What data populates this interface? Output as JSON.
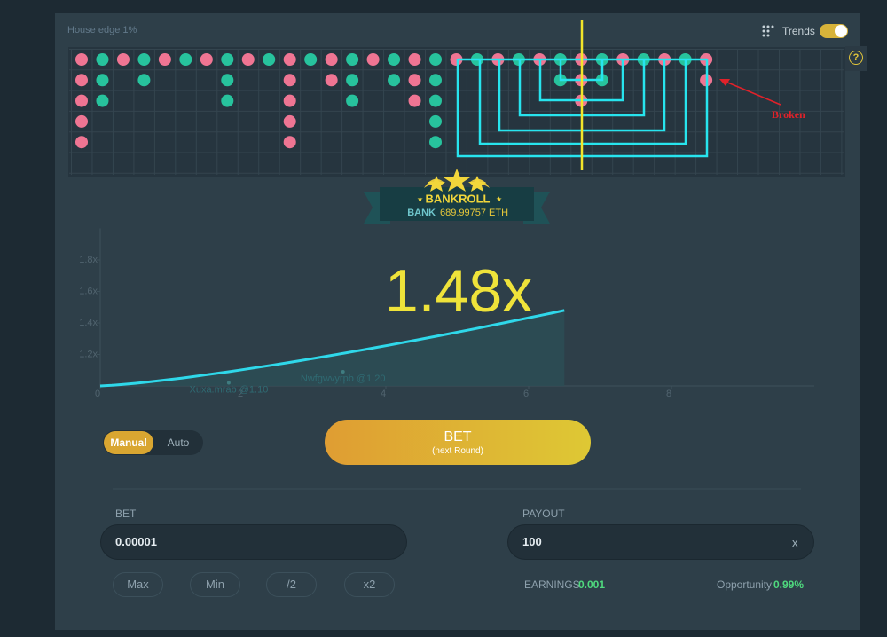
{
  "header": {
    "house_edge": "House edge 1%",
    "trends": "Trends",
    "help": "?"
  },
  "trend_grid": {
    "annotation": "Broken",
    "columns": [
      [
        "#ef7593",
        "#ef7593",
        "#ef7593",
        "#ef7593",
        "#ef7593"
      ],
      [
        "#27c39d",
        "#27c39d",
        "#27c39d"
      ],
      [
        "#ef7593"
      ],
      [
        "#27c39d",
        "#27c39d"
      ],
      [
        "#ef7593"
      ],
      [
        "#27c39d"
      ],
      [
        "#ef7593"
      ],
      [
        "#27c39d",
        "#27c39d",
        "#27c39d"
      ],
      [
        "#ef7593"
      ],
      [
        "#27c39d"
      ],
      [
        "#ef7593",
        "#ef7593",
        "#ef7593",
        "#ef7593",
        "#ef7593"
      ],
      [
        "#27c39d"
      ],
      [
        "#ef7593",
        "#ef7593"
      ],
      [
        "#27c39d",
        "#27c39d",
        "#27c39d"
      ],
      [
        "#ef7593"
      ],
      [
        "#27c39d",
        "#27c39d"
      ],
      [
        "#ef7593",
        "#ef7593",
        "#ef7593"
      ],
      [
        "#27c39d",
        "#27c39d",
        "#27c39d",
        "#27c39d",
        "#27c39d"
      ],
      [
        "#ef7593"
      ],
      [
        "#27c39d"
      ],
      [
        "#ef7593"
      ],
      [
        "#27c39d"
      ],
      [
        "#ef7593"
      ],
      [
        "#27c39d",
        "#27c39d"
      ],
      [
        "#ef7593",
        "#ef7593",
        "#ef7593"
      ],
      [
        "#27c39d",
        "#27c39d"
      ],
      [
        "#ef7593"
      ],
      [
        "#27c39d"
      ],
      [
        "#ef7593"
      ],
      [
        "#27c39d"
      ],
      [
        "#ef7593",
        "#ef7593"
      ]
    ]
  },
  "bankroll": {
    "title": "BANKROLL",
    "bank_label": "BANK",
    "bank_value": "689.99757 ETH"
  },
  "graph": {
    "xlim": [
      0,
      10
    ],
    "ylim": [
      1,
      2
    ],
    "xticks": [
      0,
      2,
      4,
      6,
      8
    ],
    "yticks": [
      {
        "value": 1.2,
        "label": "1.2x"
      },
      {
        "value": 1.4,
        "label": "1.4x"
      },
      {
        "value": 1.6,
        "label": "1.6x"
      },
      {
        "value": 1.8,
        "label": "1.8x"
      }
    ],
    "multiplier": {
      "value": 1.48,
      "label": "1.48x"
    },
    "elapsed": 6.5,
    "cashouts": [
      {
        "name": "Xuxa.mrab @1.10",
        "x": 1.8,
        "y": 1.02
      },
      {
        "name": "Nwfgwvyrpb @1.20",
        "x": 3.4,
        "y": 1.09
      }
    ]
  },
  "controls": {
    "mode": {
      "manual": "Manual",
      "auto": "Auto"
    },
    "bet_button": {
      "label": "BET",
      "sub": "(next Round)"
    },
    "bet": {
      "label": "BET",
      "value": "0.00001",
      "buttons": [
        "Max",
        "Min",
        "/2",
        "x2"
      ]
    },
    "payout": {
      "label": "PAYOUT",
      "value": "100",
      "suffix": "x"
    },
    "earnings": {
      "label": "EARNINGS",
      "value": "0.001"
    },
    "opportunity": {
      "label": "Opportunity",
      "value": "0.99%"
    }
  }
}
